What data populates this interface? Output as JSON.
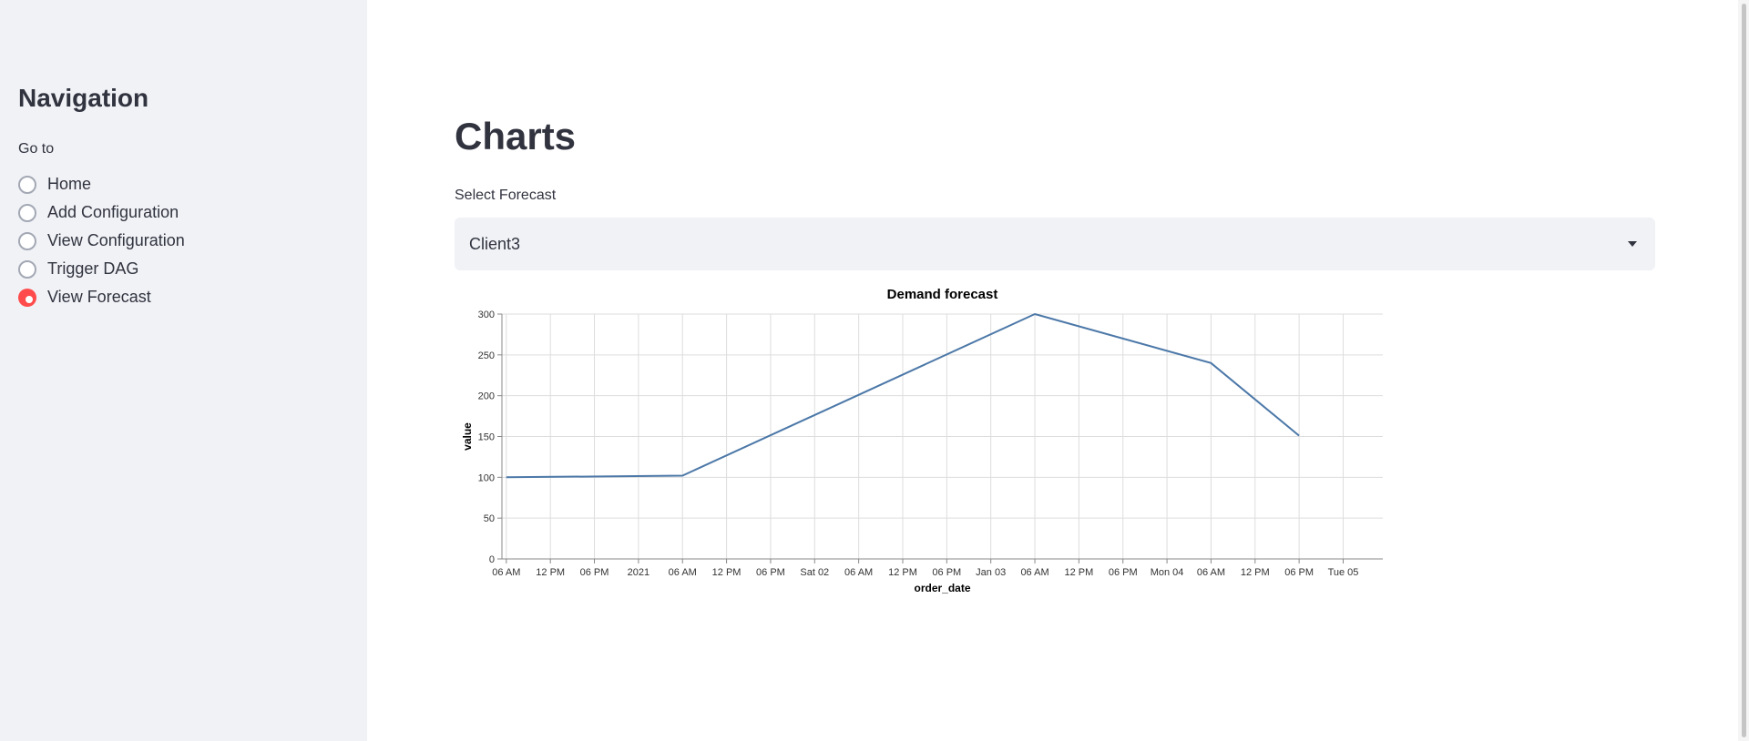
{
  "sidebar": {
    "title": "Navigation",
    "goto_label": "Go to",
    "items": [
      {
        "label": "Home",
        "selected": false
      },
      {
        "label": "Add Configuration",
        "selected": false
      },
      {
        "label": "View Configuration",
        "selected": false
      },
      {
        "label": "Trigger DAG",
        "selected": false
      },
      {
        "label": "View Forecast",
        "selected": true
      }
    ]
  },
  "main": {
    "title": "Charts",
    "select_label": "Select Forecast",
    "select_value": "Client3"
  },
  "colors": {
    "accent": "#ff4b4b",
    "line": "#4c78a8",
    "sidebar_bg": "#f0f2f6"
  },
  "chart_data": {
    "type": "line",
    "title": "Demand forecast",
    "xlabel": "order_date",
    "ylabel": "value",
    "ylim": [
      0,
      300
    ],
    "yticks": [
      0,
      50,
      100,
      150,
      200,
      250,
      300
    ],
    "x_hours": [
      0,
      24,
      72,
      96,
      108
    ],
    "values": [
      100,
      102,
      300,
      240,
      151
    ],
    "x_start_hour": -0.6,
    "x_end_hour": 119.4,
    "xticks": [
      {
        "hour": 0,
        "label": "06 AM"
      },
      {
        "hour": 6,
        "label": "12 PM"
      },
      {
        "hour": 12,
        "label": "06 PM"
      },
      {
        "hour": 18,
        "label": "2021"
      },
      {
        "hour": 24,
        "label": "06 AM"
      },
      {
        "hour": 30,
        "label": "12 PM"
      },
      {
        "hour": 36,
        "label": "06 PM"
      },
      {
        "hour": 42,
        "label": "Sat 02"
      },
      {
        "hour": 48,
        "label": "06 AM"
      },
      {
        "hour": 54,
        "label": "12 PM"
      },
      {
        "hour": 60,
        "label": "06 PM"
      },
      {
        "hour": 66,
        "label": "Jan 03"
      },
      {
        "hour": 72,
        "label": "06 AM"
      },
      {
        "hour": 78,
        "label": "12 PM"
      },
      {
        "hour": 84,
        "label": "06 PM"
      },
      {
        "hour": 90,
        "label": "Mon 04"
      },
      {
        "hour": 96,
        "label": "06 AM"
      },
      {
        "hour": 102,
        "label": "12 PM"
      },
      {
        "hour": 108,
        "label": "06 PM"
      },
      {
        "hour": 114,
        "label": "Tue 05"
      }
    ]
  }
}
